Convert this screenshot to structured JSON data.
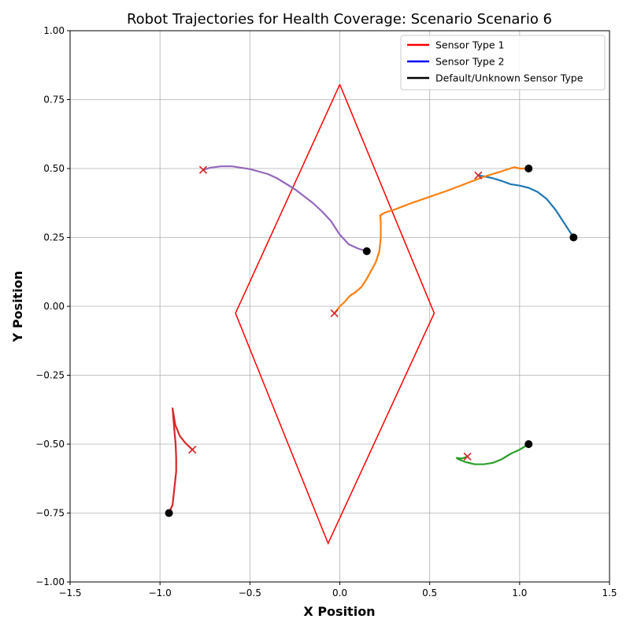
{
  "chart_data": {
    "type": "line",
    "title": "Robot Trajectories for Health Coverage: Scenario Scenario 6",
    "xlabel": "X Position",
    "ylabel": "Y Position",
    "xlim": [
      -1.5,
      1.5
    ],
    "ylim": [
      -1.0,
      1.0
    ],
    "xticks": [
      -1.5,
      -1.0,
      -0.5,
      0.0,
      0.5,
      1.0,
      1.5
    ],
    "xtick_labels": [
      "−1.5",
      "−1.0",
      "−0.5",
      "0.0",
      "0.5",
      "1.0",
      "1.5"
    ],
    "yticks": [
      -1.0,
      -0.75,
      -0.5,
      -0.25,
      0.0,
      0.25,
      0.5,
      0.75,
      1.0
    ],
    "ytick_labels": [
      "−1.00",
      "−0.75",
      "−0.50",
      "−0.25",
      "0.00",
      "0.25",
      "0.50",
      "0.75",
      "1.00"
    ],
    "grid": true,
    "legend_position": "top-right",
    "legend": [
      {
        "label": "Sensor Type 1",
        "color": "#ff0000"
      },
      {
        "label": "Sensor Type 2",
        "color": "#0000ff"
      },
      {
        "label": "Default/Unknown Sensor Type",
        "color": "#000000"
      }
    ],
    "region": {
      "color": "#ff0000",
      "points": [
        [
          0.0,
          0.805
        ],
        [
          0.525,
          -0.025
        ],
        [
          -0.065,
          -0.86
        ],
        [
          -0.58,
          -0.025
        ],
        [
          0.0,
          0.805
        ]
      ]
    },
    "trajectories": [
      {
        "color": "#1f77b4",
        "start": [
          1.3,
          0.25
        ],
        "end": [
          0.77,
          0.475
        ],
        "points": [
          [
            1.3,
            0.25
          ],
          [
            1.25,
            0.3
          ],
          [
            1.2,
            0.35
          ],
          [
            1.15,
            0.39
          ],
          [
            1.1,
            0.415
          ],
          [
            1.05,
            0.43
          ],
          [
            1.0,
            0.438
          ],
          [
            0.95,
            0.443
          ],
          [
            0.9,
            0.455
          ],
          [
            0.85,
            0.465
          ],
          [
            0.8,
            0.472
          ],
          [
            0.77,
            0.475
          ]
        ]
      },
      {
        "color": "#ff7f0e",
        "start": [
          1.05,
          0.5
        ],
        "end": [
          -0.03,
          -0.025
        ],
        "points": [
          [
            1.05,
            0.5
          ],
          [
            1.0,
            0.5
          ],
          [
            0.97,
            0.505
          ],
          [
            0.9,
            0.49
          ],
          [
            0.8,
            0.47
          ],
          [
            0.6,
            0.42
          ],
          [
            0.4,
            0.375
          ],
          [
            0.3,
            0.35
          ],
          [
            0.25,
            0.34
          ],
          [
            0.225,
            0.33
          ],
          [
            0.228,
            0.3
          ],
          [
            0.228,
            0.25
          ],
          [
            0.22,
            0.2
          ],
          [
            0.2,
            0.16
          ],
          [
            0.175,
            0.13
          ],
          [
            0.15,
            0.1
          ],
          [
            0.12,
            0.07
          ],
          [
            0.085,
            0.05
          ],
          [
            0.06,
            0.04
          ],
          [
            0.045,
            0.03
          ],
          [
            0.025,
            0.015
          ],
          [
            0.0,
            0.0
          ],
          [
            -0.03,
            -0.025
          ]
        ]
      },
      {
        "color": "#2ca02c",
        "start": [
          1.05,
          -0.5
        ],
        "end": [
          0.71,
          -0.545
        ],
        "points": [
          [
            1.05,
            -0.5
          ],
          [
            1.0,
            -0.52
          ],
          [
            0.95,
            -0.535
          ],
          [
            0.9,
            -0.555
          ],
          [
            0.85,
            -0.568
          ],
          [
            0.8,
            -0.573
          ],
          [
            0.75,
            -0.573
          ],
          [
            0.7,
            -0.565
          ],
          [
            0.66,
            -0.555
          ],
          [
            0.65,
            -0.55
          ],
          [
            0.68,
            -0.552
          ],
          [
            0.71,
            -0.545
          ]
        ]
      },
      {
        "color": "#d62728",
        "start": [
          -0.95,
          -0.75
        ],
        "end": [
          -0.82,
          -0.52
        ],
        "points": [
          [
            -0.95,
            -0.75
          ],
          [
            -0.93,
            -0.72
          ],
          [
            -0.92,
            -0.66
          ],
          [
            -0.91,
            -0.6
          ],
          [
            -0.91,
            -0.55
          ],
          [
            -0.913,
            -0.5
          ],
          [
            -0.92,
            -0.45
          ],
          [
            -0.93,
            -0.37
          ],
          [
            -0.915,
            -0.43
          ],
          [
            -0.89,
            -0.47
          ],
          [
            -0.86,
            -0.495
          ],
          [
            -0.82,
            -0.52
          ]
        ]
      },
      {
        "color": "#9467bd",
        "start": [
          0.15,
          0.2
        ],
        "end": [
          -0.76,
          0.495
        ],
        "points": [
          [
            0.15,
            0.2
          ],
          [
            0.1,
            0.21
          ],
          [
            0.05,
            0.225
          ],
          [
            0.0,
            0.26
          ],
          [
            -0.05,
            0.31
          ],
          [
            -0.1,
            0.345
          ],
          [
            -0.15,
            0.375
          ],
          [
            -0.2,
            0.4
          ],
          [
            -0.25,
            0.425
          ],
          [
            -0.3,
            0.445
          ],
          [
            -0.35,
            0.465
          ],
          [
            -0.4,
            0.48
          ],
          [
            -0.5,
            0.498
          ],
          [
            -0.6,
            0.508
          ],
          [
            -0.66,
            0.508
          ],
          [
            -0.72,
            0.503
          ],
          [
            -0.76,
            0.495
          ]
        ]
      }
    ]
  }
}
